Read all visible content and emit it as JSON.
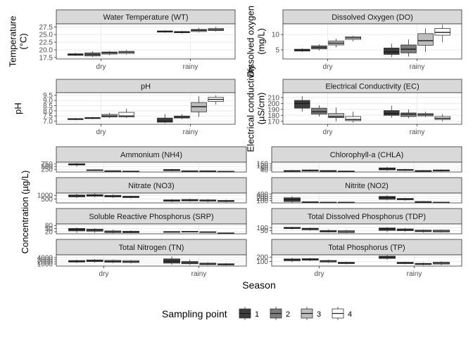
{
  "chart_data": {
    "type": "box",
    "x_title": "Season",
    "x_categories": [
      "dry",
      "rainy"
    ],
    "legend": {
      "title": "Sampling point",
      "position": "bottom",
      "entries": [
        "1",
        "2",
        "3",
        "4"
      ],
      "colors": [
        "#3c3c3c",
        "#7c7c7c",
        "#bdbdbd",
        "#ffffff"
      ]
    },
    "grid": true,
    "shared_ylabel": "Concentration (µg/L)",
    "panels": [
      {
        "id": "wt",
        "strip": "Water Temperature (WT)",
        "ylabel": [
          "Temperature",
          "(°C)"
        ],
        "ylim": [
          17.0,
          28.5
        ],
        "yticks": [
          "17.5",
          "20.0",
          "22.5",
          "25.0",
          "27.5"
        ],
        "boxes": [
          [
            [
              18.0,
              18.2,
              18.4,
              18.7,
              19.0
            ],
            [
              17.7,
              18.0,
              18.5,
              19.0,
              19.5
            ],
            [
              18.2,
              18.6,
              19.0,
              19.3,
              19.6
            ],
            [
              18.5,
              18.8,
              19.2,
              19.5,
              19.9
            ]
          ],
          [
            [
              25.6,
              25.8,
              26.0,
              26.2,
              26.4
            ],
            [
              25.3,
              25.6,
              25.8,
              26.0,
              26.2
            ],
            [
              25.7,
              26.0,
              26.4,
              26.7,
              27.2
            ],
            [
              26.0,
              26.3,
              26.6,
              27.0,
              27.5
            ]
          ]
        ]
      },
      {
        "id": "do",
        "strip": "Dissolved Oxygen (DO)",
        "ylabel": [
          "Dissolved oxygen",
          "(mg/L)"
        ],
        "ylim": [
          2.0,
          13.5
        ],
        "yticks": [
          "5",
          "10"
        ],
        "boxes": [
          [
            [
              4.3,
              4.6,
              4.9,
              5.2,
              5.5
            ],
            [
              4.8,
              5.3,
              5.8,
              6.3,
              6.8
            ],
            [
              5.8,
              6.6,
              7.2,
              7.9,
              8.6
            ],
            [
              7.8,
              8.4,
              8.9,
              9.3,
              9.6
            ]
          ],
          [
            [
              2.6,
              3.5,
              4.3,
              5.6,
              7.0
            ],
            [
              2.8,
              4.0,
              5.2,
              6.6,
              8.4
            ],
            [
              4.3,
              6.5,
              8.0,
              10.3,
              12.0
            ],
            [
              7.5,
              9.8,
              10.7,
              12.0,
              13.2
            ]
          ]
        ]
      },
      {
        "id": "ph",
        "strip": "pH",
        "ylabel": [
          "pH"
        ],
        "ylim": [
          6.7,
          9.75
        ],
        "yticks": [
          "7.0",
          "7.5",
          "8.0",
          "8.5",
          "9.0",
          "9.5"
        ],
        "boxes": [
          [
            [
              7.1,
              7.15,
              7.2,
              7.25,
              7.3
            ],
            [
              7.2,
              7.25,
              7.3,
              7.35,
              7.4
            ],
            [
              7.3,
              7.4,
              7.5,
              7.65,
              7.8
            ],
            [
              7.3,
              7.4,
              7.5,
              7.85,
              8.2
            ]
          ],
          [
            [
              6.8,
              6.9,
              7.0,
              7.3,
              7.7
            ],
            [
              7.2,
              7.3,
              7.4,
              7.5,
              7.7
            ],
            [
              7.4,
              7.9,
              8.4,
              8.8,
              9.4
            ],
            [
              8.6,
              8.9,
              9.1,
              9.3,
              9.5
            ]
          ]
        ]
      },
      {
        "id": "ec",
        "strip": "Electrical Conductivity (EC)",
        "ylabel": [
          "Electrical conductivity",
          "(µS/cm)"
        ],
        "ylim": [
          165,
          218
        ],
        "yticks": [
          "170",
          "180",
          "190",
          "200",
          "210"
        ],
        "boxes": [
          [
            [
              186,
              192,
              200,
              205,
              212
            ],
            [
              178,
              182,
              186,
              192,
              197
            ],
            [
              170,
              176,
              178,
              183,
              193
            ],
            [
              168,
              171,
              173,
              178,
              186
            ]
          ],
          [
            [
              176,
              180,
              183,
              188,
              196
            ],
            [
              175,
              178,
              182,
              184,
              190
            ],
            [
              177,
              179,
              181,
              183,
              186
            ],
            [
              170,
              173,
              175,
              178,
              182
            ]
          ]
        ]
      },
      {
        "id": "nh4",
        "strip": "Ammonium (NH4)",
        "ylim": [
          0,
          900
        ],
        "yticks": [
          "250",
          "500",
          "750"
        ],
        "boxes": [
          [
            [
              500,
              640,
              690,
              760,
              820
            ],
            [
              90,
              130,
              170,
              200,
              240
            ],
            [
              40,
              60,
              90,
              110,
              140
            ],
            [
              20,
              40,
              60,
              80,
              100
            ]
          ],
          [
            [
              80,
              120,
              170,
              230,
              290
            ],
            [
              40,
              60,
              80,
              110,
              140
            ],
            [
              40,
              60,
              80,
              110,
              140
            ],
            [
              20,
              30,
              50,
              70,
              90
            ]
          ]
        ]
      },
      {
        "id": "chla",
        "strip": "Chlorophyll-a (CHLA)",
        "ylim": [
          0,
          190
        ],
        "yticks": [
          "40",
          "80",
          "120",
          "160"
        ],
        "boxes": [
          [
            [
              5,
              12,
              20,
              28,
              38
            ],
            [
              10,
              20,
              30,
              40,
              50
            ],
            [
              5,
              12,
              20,
              28,
              35
            ],
            [
              3,
              8,
              12,
              18,
              25
            ]
          ],
          [
            [
              20,
              40,
              60,
              80,
              100
            ],
            [
              20,
              30,
              40,
              50,
              60
            ],
            [
              5,
              12,
              20,
              28,
              38
            ],
            [
              10,
              20,
              30,
              40,
              50
            ]
          ]
        ]
      },
      {
        "id": "no3",
        "strip": "Nitrate (NO3)",
        "ylim": [
          0,
          1300
        ],
        "yticks": [
          "500",
          "1000"
        ],
        "boxes": [
          [
            [
              650,
              800,
              930,
              1050,
              1180
            ],
            [
              750,
              880,
              990,
              1100,
              1250
            ],
            [
              650,
              780,
              900,
              1000,
              1120
            ],
            [
              600,
              700,
              800,
              880,
              950
            ]
          ],
          [
            [
              100,
              220,
              300,
              400,
              500
            ],
            [
              150,
              260,
              350,
              450,
              550
            ],
            [
              100,
              230,
              300,
              400,
              500
            ],
            [
              80,
              180,
              250,
              330,
              420
            ]
          ]
        ]
      },
      {
        "id": "no2",
        "strip": "Nitrite (NO2)",
        "ylim": [
          0,
          440
        ],
        "yticks": [
          "100",
          "200",
          "300",
          "400"
        ],
        "boxes": [
          [
            [
              10,
              60,
              150,
              230,
              300
            ],
            [
              10,
              20,
              40,
              50,
              60
            ],
            [
              5,
              10,
              20,
              30,
              40
            ],
            [
              5,
              10,
              20,
              30,
              40
            ]
          ],
          [
            [
              120,
              160,
              240,
              290,
              340
            ],
            [
              100,
              140,
              170,
              200,
              230
            ],
            [
              10,
              20,
              40,
              60,
              80
            ],
            [
              5,
              10,
              20,
              30,
              40
            ]
          ]
        ]
      },
      {
        "id": "srp",
        "strip": "Soluble Reactive Phosphorus (SRP)",
        "ylim": [
          0,
          95
        ],
        "yticks": [
          "20",
          "50",
          "80"
        ],
        "boxes": [
          [
            [
              10,
              28,
              42,
              52,
              60
            ],
            [
              10,
              25,
              35,
              45,
              55
            ],
            [
              5,
              12,
              20,
              28,
              40
            ],
            [
              5,
              10,
              18,
              25,
              35
            ]
          ],
          [
            [
              10,
              14,
              18,
              22,
              25
            ],
            [
              14,
              17,
              20,
              23,
              25
            ],
            [
              10,
              13,
              16,
              20,
              24
            ],
            [
              2,
              4,
              6,
              8,
              10
            ]
          ]
        ]
      },
      {
        "id": "tdp",
        "strip": "Total Dissolved Phosphorus (TDP)",
        "ylim": [
          0,
          160
        ],
        "yticks": [
          "50",
          "100"
        ],
        "boxes": [
          [
            [
              70,
              85,
              95,
              105,
              115
            ],
            [
              50,
              65,
              80,
              90,
              100
            ],
            [
              20,
              30,
              40,
              55,
              70
            ],
            [
              10,
              20,
              35,
              50,
              65
            ]
          ],
          [
            [
              30,
              55,
              80,
              95,
              110
            ],
            [
              30,
              50,
              65,
              80,
              95
            ],
            [
              20,
              35,
              45,
              60,
              70
            ],
            [
              20,
              30,
              45,
              60,
              70
            ]
          ]
        ]
      },
      {
        "id": "tn",
        "strip": "Total Nitrogen (TN)",
        "ylim": [
          0,
          5300
        ],
        "yticks": [
          "1000",
          "2000",
          "3000",
          "4000"
        ],
        "boxes": [
          [
            [
              1500,
              1900,
              2200,
              2600,
              3000
            ],
            [
              1600,
              2100,
              2500,
              2900,
              3300
            ],
            [
              1400,
              1800,
              2200,
              2700,
              3100
            ],
            [
              1300,
              1700,
              2100,
              2600,
              3000
            ]
          ],
          [
            [
              700,
              1400,
              2300,
              3400,
              4600
            ],
            [
              600,
              1100,
              1600,
              2200,
              3000
            ],
            [
              400,
              700,
              1000,
              1400,
              1800
            ],
            [
              300,
              550,
              800,
              1100,
              1400
            ]
          ]
        ]
      },
      {
        "id": "tp",
        "strip": "Total Phosphorus (TP)",
        "ylim": [
          0,
          250
        ],
        "yticks": [
          "100",
          "200"
        ],
        "boxes": [
          [
            [
              90,
              120,
              140,
              160,
              180
            ],
            [
              110,
              130,
              150,
              165,
              180
            ],
            [
              70,
              90,
              110,
              125,
              140
            ],
            [
              40,
              55,
              70,
              85,
              100
            ]
          ],
          [
            [
              140,
              170,
              200,
              220,
              240
            ],
            [
              40,
              55,
              70,
              85,
              100
            ],
            [
              20,
              35,
              50,
              60,
              75
            ],
            [
              20,
              45,
              65,
              85,
              110
            ]
          ]
        ]
      }
    ]
  }
}
